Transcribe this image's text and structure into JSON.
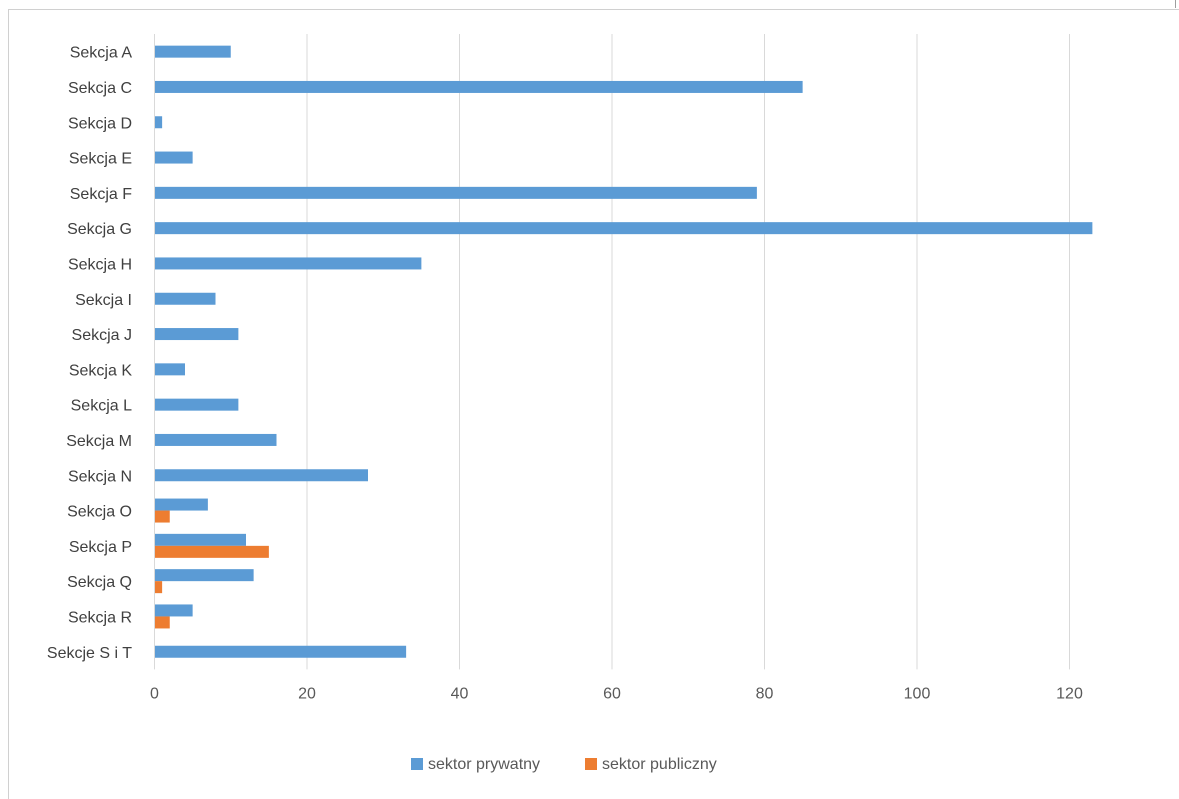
{
  "chart_data": {
    "type": "bar",
    "orientation": "horizontal",
    "categories": [
      "Sekcja A",
      "Sekcja C",
      "Sekcja D",
      "Sekcja E",
      "Sekcja F",
      "Sekcja G",
      "Sekcja H",
      "Sekcja I",
      "Sekcja J",
      "Sekcja K",
      "Sekcja L",
      "Sekcja M",
      "Sekcja N",
      "Sekcja O",
      "Sekcja P",
      "Sekcja Q",
      "Sekcja R",
      "Sekcje S i T"
    ],
    "series": [
      {
        "name": "sektor prywatny",
        "color": "#5b9bd5",
        "values": [
          10,
          85,
          1,
          5,
          79,
          123,
          35,
          8,
          11,
          4,
          11,
          16,
          28,
          7,
          12,
          13,
          5,
          33
        ]
      },
      {
        "name": "sektor publiczny",
        "color": "#ed7d31",
        "values": [
          0,
          0,
          0,
          0,
          0,
          0,
          0,
          0,
          0,
          0,
          0,
          0,
          0,
          2,
          15,
          1,
          2,
          0
        ]
      }
    ],
    "xlim": [
      0,
      130
    ],
    "xticks": [
      0,
      20,
      40,
      60,
      80,
      100,
      120
    ],
    "grid": true,
    "legend": "bottom",
    "title": "",
    "xlabel": "",
    "ylabel": ""
  }
}
